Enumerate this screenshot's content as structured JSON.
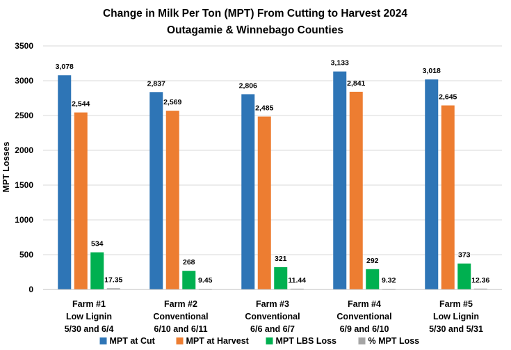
{
  "chart_data": {
    "type": "bar",
    "title": "Change in Milk Per Ton (MPT) From Cutting to Harvest 2024",
    "subtitle": "Outagamie & Winnebago Counties",
    "ylabel": "MPT Losses",
    "xlabel": "",
    "ylim": [
      0,
      3500
    ],
    "yticks": [
      0,
      500,
      1000,
      1500,
      2000,
      2500,
      3000,
      3500
    ],
    "grid": true,
    "legend": "bottom",
    "categories": [
      [
        "Farm #1",
        "Low Lignin",
        "5/30 and 6/4"
      ],
      [
        "Farm #2",
        "Conventional",
        "6/10 and 6/11"
      ],
      [
        "Farm #3",
        "Conventional",
        "6/6 and 6/7"
      ],
      [
        "Farm #4",
        "Conventional",
        "6/9 and 6/10"
      ],
      [
        "Farm #5",
        "Low Lignin",
        "5/30 and 5/31"
      ]
    ],
    "series": [
      {
        "name": "MPT at Cut",
        "color": "#2E75B6",
        "values": [
          3078,
          2837,
          2806,
          3133,
          3018
        ],
        "labels": [
          "3,078",
          "2,837",
          "2,806",
          "3,133",
          "3,018"
        ]
      },
      {
        "name": "MPT at Harvest",
        "color": "#ED7D31",
        "values": [
          2544,
          2569,
          2485,
          2841,
          2645
        ],
        "labels": [
          "2,544",
          "2,569",
          "2,485",
          "2,841",
          "2,645"
        ]
      },
      {
        "name": "MPT LBS Loss",
        "color": "#00B050",
        "values": [
          534,
          268,
          321,
          292,
          373
        ],
        "labels": [
          "534",
          "268",
          "321",
          "292",
          "373"
        ]
      },
      {
        "name": "% MPT Loss",
        "color": "#A5A5A5",
        "values": [
          17.35,
          9.45,
          11.44,
          9.32,
          12.36
        ],
        "labels": [
          "17.35",
          "9.45",
          "11.44",
          "9.32",
          "12.36"
        ]
      }
    ]
  }
}
